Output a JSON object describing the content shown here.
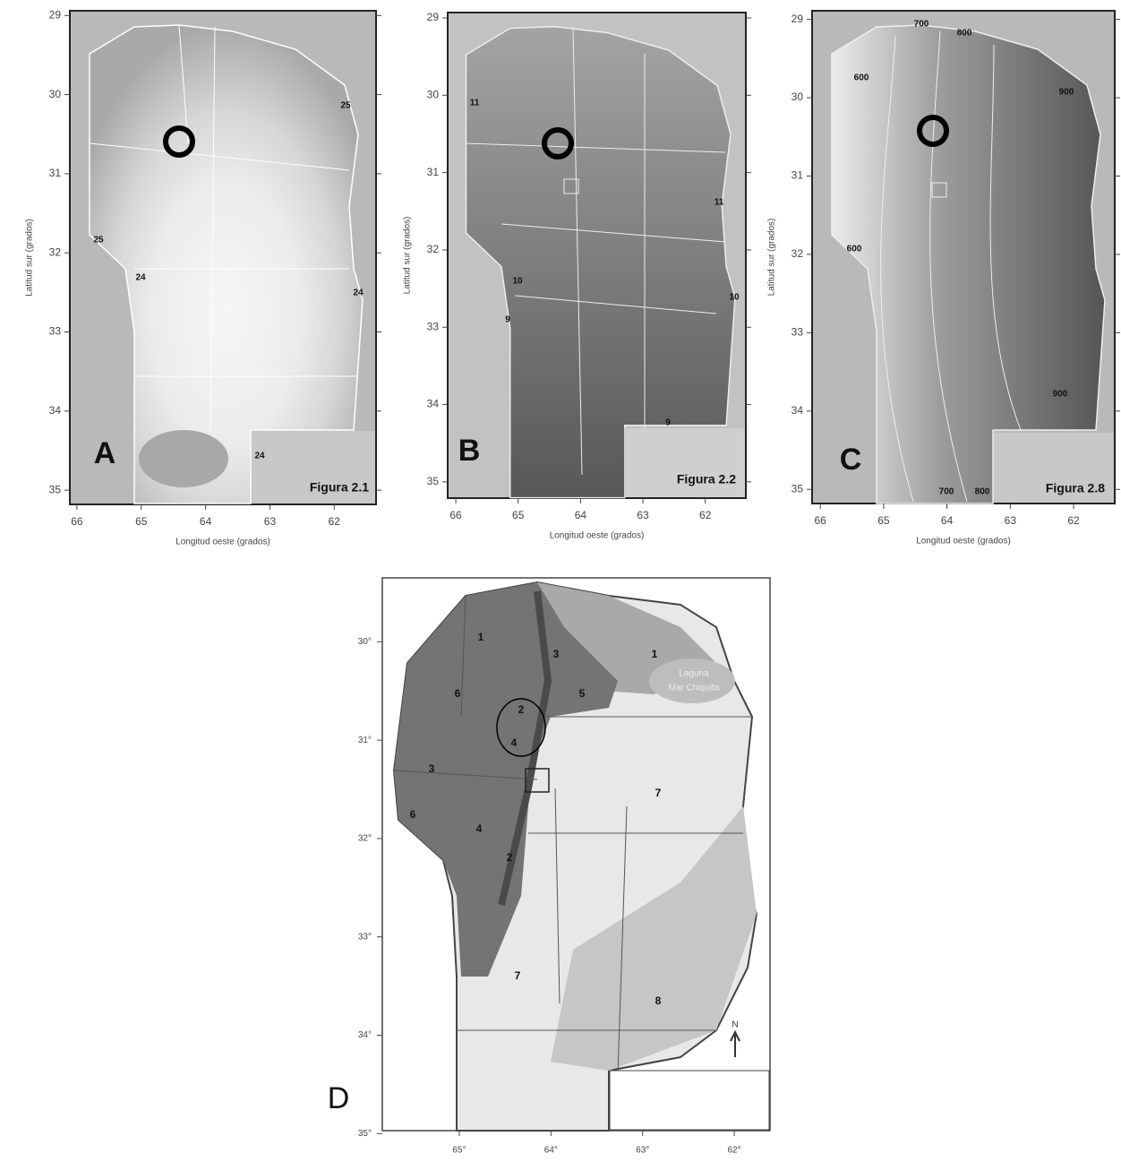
{
  "panels": [
    {
      "letter": "A",
      "figure": "Figura 2.1",
      "y_label": "Latitud sur (grados)",
      "x_label": "Longitud oeste (grados)",
      "xlim": [
        66.11,
        61.35
      ],
      "ylim": [
        28.94,
        35.18
      ],
      "xticks": [
        66,
        65,
        64,
        63,
        62
      ],
      "yticks": [
        29,
        30,
        31,
        32,
        33,
        34,
        35
      ],
      "contour_labels": [
        25,
        25,
        24,
        24,
        24
      ]
    },
    {
      "letter": "B",
      "figure": "Figura 2.2",
      "y_label": "Latitud sur (grados)",
      "x_label": "Longitud oeste (grados)",
      "xlim": [
        66.13,
        61.35
      ],
      "ylim": [
        28.93,
        35.21
      ],
      "xticks": [
        66,
        65,
        64,
        63,
        62
      ],
      "yticks": [
        29,
        30,
        31,
        32,
        33,
        34,
        35
      ],
      "contour_labels": [
        11,
        11,
        10,
        10,
        9,
        9
      ]
    },
    {
      "letter": "C",
      "figure": "Figura 2.8",
      "y_label": "Latitud sur (grados)",
      "x_label": "Longitud oeste (grados)",
      "xlim": [
        66.13,
        61.35
      ],
      "ylim": [
        28.89,
        35.18
      ],
      "xticks": [
        66,
        65,
        64,
        63,
        62
      ],
      "yticks": [
        29,
        30,
        31,
        32,
        33,
        34,
        35
      ],
      "contour_labels": [
        700,
        800,
        600,
        900,
        600,
        900,
        700,
        800
      ]
    },
    {
      "letter": "D",
      "xlim": [
        65.84,
        61.61
      ],
      "ylim": [
        29.35,
        34.97
      ],
      "xticks": [
        {
          "value": 65,
          "label": "65°"
        },
        {
          "value": 64,
          "label": "64°"
        },
        {
          "value": 63,
          "label": "63°"
        },
        {
          "value": 62,
          "label": "62°"
        }
      ],
      "yticks": [
        {
          "value": 30,
          "label": "30°"
        },
        {
          "value": 31,
          "label": "31°"
        },
        {
          "value": 32,
          "label": "32°"
        },
        {
          "value": 33,
          "label": "33°"
        },
        {
          "value": 34,
          "label": "34°"
        },
        {
          "value": 35,
          "label": "35°"
        }
      ],
      "region_labels": [
        1,
        3,
        1,
        6,
        5,
        2,
        4,
        3,
        7,
        6,
        4,
        2,
        7,
        8
      ],
      "lake": [
        "Laguna",
        "Mar Chiquita"
      ],
      "north": "N"
    }
  ]
}
